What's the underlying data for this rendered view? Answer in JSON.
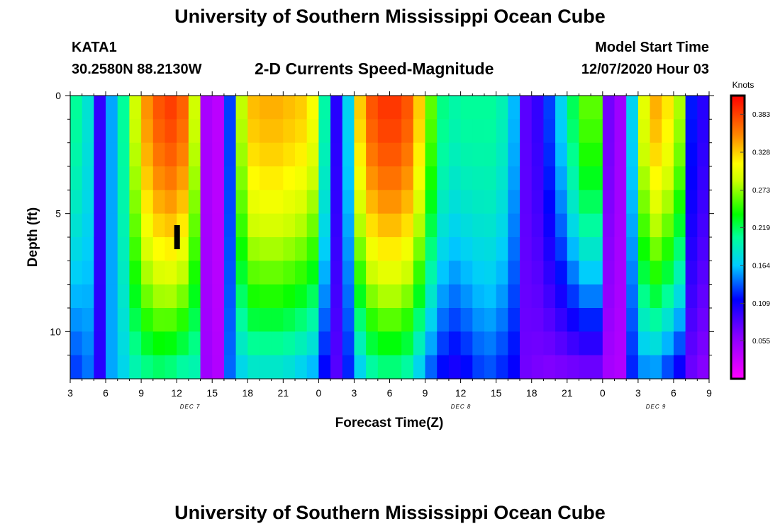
{
  "header": {
    "title_top": "University of Southern Mississippi Ocean Cube",
    "station_id": "KATA1",
    "coordinates": "30.2580N 88.2130W",
    "plot_title": "2-D Currents Speed-Magnitude",
    "model_start_label": "Model Start Time",
    "model_start_value": "12/07/2020 Hour 03"
  },
  "footer": {
    "title_bottom": "University of Southern Mississippi Ocean Cube"
  },
  "chart_data": {
    "type": "heatmap",
    "title": "2-D Currents Speed-Magnitude",
    "xlabel": "Forecast Time(Z)",
    "ylabel": "Depth (ft)",
    "units": "Knots",
    "x_range_hours": [
      0,
      54
    ],
    "x_ticks": [
      "3",
      "6",
      "9",
      "12",
      "15",
      "18",
      "21",
      "0",
      "3",
      "6",
      "9",
      "12",
      "15",
      "18",
      "21",
      "0",
      "3",
      "6",
      "9"
    ],
    "day_labels": [
      {
        "label": "DEC  7",
        "hour": 9
      },
      {
        "label": "DEC  8",
        "hour": 33
      },
      {
        "label": "DEC  9",
        "hour": 49.5
      }
    ],
    "y_range_ft": [
      0,
      12
    ],
    "y_ticks": [
      "0",
      "5",
      "10"
    ],
    "colorbar": {
      "min": 0,
      "max": 0.41,
      "tick_values": [
        "0.383",
        "0.328",
        "0.273",
        "0.219",
        "0.164",
        "0.109",
        "0.055"
      ]
    },
    "time_cols": 54,
    "depth_rows": 12,
    "surface_speed_knots": [
      0.205,
      0.182,
      0.095,
      0.155,
      0.205,
      0.29,
      0.35,
      0.375,
      0.385,
      0.37,
      0.29,
      0.045,
      0.035,
      0.13,
      0.285,
      0.335,
      0.34,
      0.34,
      0.335,
      0.33,
      0.31,
      0.2,
      0.1,
      0.17,
      0.33,
      0.375,
      0.388,
      0.388,
      0.375,
      0.33,
      0.26,
      0.21,
      0.2,
      0.205,
      0.205,
      0.205,
      0.195,
      0.16,
      0.08,
      0.095,
      0.13,
      0.17,
      0.22,
      0.26,
      0.26,
      0.07,
      0.05,
      0.17,
      0.3,
      0.34,
      0.32,
      0.28,
      0.12,
      0.1
    ],
    "bottom_speed_knots": [
      0.125,
      0.14,
      0.1,
      0.155,
      0.17,
      0.19,
      0.2,
      0.205,
      0.2,
      0.19,
      0.19,
      0.05,
      0.04,
      0.14,
      0.165,
      0.175,
      0.175,
      0.175,
      0.17,
      0.16,
      0.15,
      0.11,
      0.08,
      0.12,
      0.16,
      0.19,
      0.2,
      0.2,
      0.19,
      0.16,
      0.13,
      0.11,
      0.1,
      0.11,
      0.125,
      0.13,
      0.12,
      0.11,
      0.07,
      0.065,
      0.06,
      0.06,
      0.06,
      0.06,
      0.06,
      0.045,
      0.04,
      0.12,
      0.14,
      0.14,
      0.12,
      0.1,
      0.07,
      0.06
    ],
    "decay_exponent": 1.6,
    "missing_data_marker": {
      "hour": 9,
      "depth_range_ft": [
        5.5,
        6.5
      ]
    }
  }
}
